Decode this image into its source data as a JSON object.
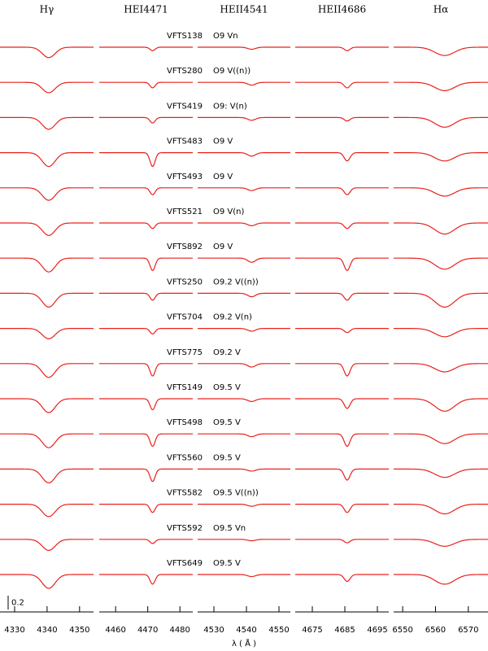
{
  "chart_data": {
    "type": "line_profiles",
    "x_label": "λ ( Å )",
    "columns": [
      {
        "title": "Hγ",
        "center": 4340.5,
        "sigma": 2.0,
        "xlim": [
          4325.5,
          4354.3
        ],
        "xticks": [
          4330,
          4340,
          4350
        ]
      },
      {
        "title": "HEI4471",
        "center": 4471.5,
        "sigma": 0.8,
        "xlim": [
          4454.9,
          4484
        ],
        "xticks": [
          4460,
          4470,
          4480
        ]
      },
      {
        "title": "HEII4541",
        "center": 4541.6,
        "sigma": 1.2,
        "xlim": [
          4525,
          4553.5
        ],
        "xticks": [
          4530,
          4540,
          4550
        ]
      },
      {
        "title": "HEII4686",
        "center": 4685.7,
        "sigma": 0.9,
        "xlim": [
          4669.75,
          4698.5
        ],
        "xticks": [
          4675,
          4685,
          4695
        ]
      },
      {
        "title": "Hα",
        "center": 6562.8,
        "sigma": 3.0,
        "xlim": [
          6547.25,
          6576
        ],
        "xticks": [
          6550,
          6560,
          6570
        ]
      }
    ],
    "stars": [
      "VFTS138",
      "VFTS280",
      "VFTS419",
      "VFTS483",
      "VFTS493",
      "VFTS521",
      "VFTS892",
      "VFTS250",
      "VFTS704",
      "VFTS775",
      "VFTS149",
      "VFTS498",
      "VFTS560",
      "VFTS582",
      "VFTS592",
      "VFTS649"
    ],
    "spectral_types": [
      "O9 Vn",
      "O9 V((n))",
      "O9: V(n)",
      "O9 V",
      "O9 V",
      "O9 V(n)",
      "O9 V",
      "O9.2 V((n))",
      "O9.2 V(n)",
      "O9.2 V",
      "O9.5 V",
      "O9.5 V",
      "O9.5 V",
      "O9.5 V((n))",
      "O9.5 Vn",
      "O9.5 V"
    ],
    "depths": [
      [
        0.15,
        0.05,
        0.03,
        0.05,
        0.12
      ],
      [
        0.15,
        0.08,
        0.04,
        0.08,
        0.12
      ],
      [
        0.17,
        0.08,
        0.04,
        0.05,
        0.14
      ],
      [
        0.2,
        0.2,
        0.05,
        0.12,
        0.12
      ],
      [
        0.18,
        0.1,
        0.04,
        0.1,
        0.12
      ],
      [
        0.18,
        0.08,
        0.04,
        0.08,
        0.16
      ],
      [
        0.2,
        0.18,
        0.06,
        0.18,
        0.16
      ],
      [
        0.2,
        0.1,
        0.05,
        0.1,
        0.2
      ],
      [
        0.15,
        0.08,
        0.04,
        0.06,
        0.12
      ],
      [
        0.2,
        0.18,
        0.05,
        0.18,
        0.12
      ],
      [
        0.2,
        0.16,
        0.04,
        0.14,
        0.18
      ],
      [
        0.2,
        0.18,
        0.04,
        0.18,
        0.14
      ],
      [
        0.2,
        0.18,
        0.03,
        0.16,
        0.12
      ],
      [
        0.18,
        0.12,
        0.03,
        0.12,
        0.14
      ],
      [
        0.16,
        0.06,
        0.02,
        0.05,
        0.1
      ],
      [
        0.2,
        0.14,
        0.03,
        0.1,
        0.14
      ]
    ],
    "color": "#e8211c",
    "scale_bar": 0.2
  }
}
